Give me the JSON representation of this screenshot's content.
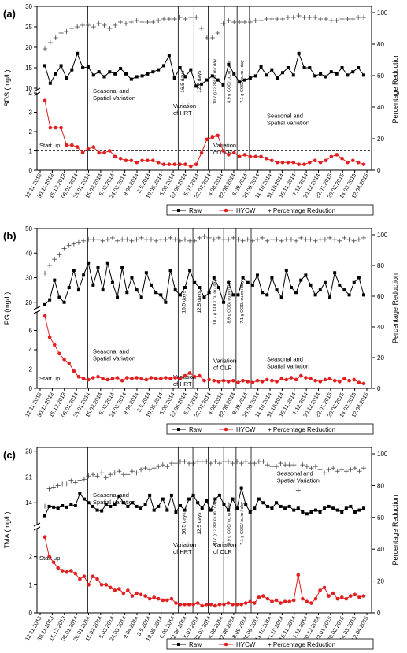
{
  "chart_data": [
    {
      "type": "line",
      "panel_label": "(a)",
      "ylabel_left": "SDS (mg/L)",
      "ylabel_right": "Percentage Reduction",
      "y_upper_ticks": [
        "10",
        "15",
        "20",
        "25",
        "30"
      ],
      "y_upper_range": [
        10,
        30
      ],
      "y_lower_ticks": [
        "0",
        "1",
        "2",
        "3",
        "4"
      ],
      "y_lower_range": [
        0,
        4
      ],
      "y_right_ticks": [
        "0",
        "20",
        "40",
        "60",
        "80",
        "100"
      ],
      "y_right_range": [
        0,
        100
      ],
      "x_ticks": [
        "12.11.2013",
        "30.11.2013",
        "15.12.2013",
        "06.01.2014",
        "26.01.2014",
        "15.02.2014",
        "5.03.2014",
        "24.03.2014",
        "9.04.2014",
        "3.5.2014",
        "19.05.2014",
        "6.06.2014",
        "22.06.2014",
        "5.07.2014",
        "22.07.2014",
        "4.08.2014",
        "22.08.2014",
        "6.09.2014",
        "26.09.2014",
        "11.10.2014",
        "31.10.2014",
        "15.11.2014",
        "7.12.2014",
        "30.12.2014",
        "22.01.2015",
        "20.02.2015",
        "14.03.2015",
        "12.04.2015"
      ],
      "dashed_line_value": 1.0,
      "period_labels": [
        "16.5 days",
        "12.5 days",
        "10.7 g COD/ cu.m / day",
        "8.9 g COD/ cu.m / day",
        "7.1 g COD/ cu.m / day"
      ],
      "annotations": [
        "Start up",
        "Seasonal and\nSpatial Variation",
        "Variation\nof HRT",
        "Variation\nof OLR",
        "Seasonal and\nSpatial Variation"
      ],
      "legend": [
        "Raw",
        "HYCW",
        "+ Percentage Reduction"
      ],
      "series": [
        {
          "name": "Raw",
          "values": [
            15.5,
            11.2,
            13.5,
            15.5,
            12.5,
            14.5,
            18.5,
            15,
            15.2,
            13.2,
            14,
            12.8,
            14,
            13.5,
            14.8,
            13.5,
            12.2,
            12.8,
            13,
            13.5,
            14,
            14.5,
            15.5,
            18,
            12.5,
            15,
            12.8,
            14.5,
            10.5,
            11,
            12,
            13,
            12,
            10.8,
            15.8,
            13.5,
            11.5,
            12,
            12.5,
            13,
            15.2,
            13.2,
            14.5,
            12.5,
            13.8,
            15,
            13.2,
            18.5,
            15,
            15,
            13,
            13.5,
            12.8,
            14,
            13.5,
            15,
            13.2,
            14,
            15,
            13.2
          ]
        },
        {
          "name": "HYCW",
          "values": [
            3.6,
            2.2,
            2.2,
            2.2,
            1.3,
            1.3,
            1.2,
            0.9,
            1.1,
            1.2,
            0.9,
            0.9,
            1.0,
            0.7,
            0.6,
            0.5,
            0.5,
            0.4,
            0.5,
            0.5,
            0.5,
            0.4,
            0.3,
            0.3,
            0.3,
            0.3,
            0.3,
            0.2,
            0.3,
            0.9,
            1.6,
            1.7,
            1.8,
            1.0,
            0.8,
            0.9,
            0.7,
            0.8,
            0.7,
            0.7,
            0.7,
            0.6,
            0.5,
            0.4,
            0.4,
            0.4,
            0.4,
            0.3,
            0.3,
            0.4,
            0.5,
            0.4,
            0.5,
            0.7,
            0.8,
            0.6,
            0.4,
            0.5,
            0.4,
            0.3
          ]
        },
        {
          "name": "Percentage Reduction",
          "values": [
            77,
            81,
            84,
            87,
            88,
            90,
            91,
            92,
            92,
            91,
            93,
            92,
            90,
            92,
            94,
            93,
            94,
            95,
            94,
            94,
            94,
            95,
            96,
            96,
            96,
            97,
            96,
            97,
            97,
            90,
            84,
            84,
            87,
            93,
            95,
            94,
            94,
            94,
            94,
            95,
            95,
            96,
            96,
            96,
            96,
            97,
            97,
            98,
            97,
            97,
            97,
            96,
            96,
            95,
            95,
            96,
            96,
            96,
            97,
            97
          ]
        }
      ]
    },
    {
      "type": "line",
      "panel_label": "(b)",
      "ylabel_left": "PG (mg/L)",
      "ylabel_right": "Percentage Reduction",
      "y_upper_ticks": [
        "20",
        "30",
        "40",
        "50"
      ],
      "y_upper_range": [
        18,
        50
      ],
      "y_lower_ticks": [
        "0",
        "2",
        "4",
        "6"
      ],
      "y_lower_range": [
        0,
        8
      ],
      "y_right_ticks": [
        "0",
        "20",
        "40",
        "60",
        "80",
        "100"
      ],
      "y_right_range": [
        0,
        100
      ],
      "x_ticks": [
        "12.11.2013",
        "30.11.2013",
        "15.12.2013",
        "06.01.2014",
        "26.01.2014",
        "15.02.2014",
        "5.03.2014",
        "24.03.2014",
        "9.04.2014",
        "3.5.2014",
        "19.05.2014",
        "6.06.2014",
        "22.06.2014",
        "5.07.2014",
        "22.07.2014",
        "4.08.2014",
        "22.08.2014",
        "8.09.2014",
        "26.09.2014",
        "11.10.2014",
        "31.10.2014",
        "15.11.2014",
        "7.12.2014",
        "30.12.2014",
        "22.01.2015",
        "20.02.2015",
        "14.03.2015",
        "12.04.2015"
      ],
      "period_labels": [
        "16.5 days",
        "12.5 days",
        "10.7 g COD/ cu.m / day",
        "8.9 g COD/ cu.m / day",
        "7.1 g COD/ cu.m / day"
      ],
      "annotations": [
        "Start up",
        "Seasonal and\nSpatial Variation",
        "Variation\nof HRT",
        "Variation\nof OLR",
        "Seasonal and\nSpatial Variation"
      ],
      "legend": [
        "Raw",
        "HYCW",
        "+ Percentage Reduction"
      ],
      "series": [
        {
          "name": "Raw",
          "values": [
            19,
            21,
            29,
            22,
            20,
            26,
            33,
            25,
            31,
            36,
            27,
            34,
            25,
            36,
            28,
            22,
            34,
            24,
            30,
            25,
            22,
            32,
            27,
            24,
            23,
            20,
            33,
            25,
            23,
            26,
            33,
            28,
            26,
            22,
            24,
            30,
            26,
            20,
            28,
            23,
            23,
            30,
            28,
            27,
            31,
            24,
            23,
            30,
            25,
            22,
            33,
            26,
            24,
            29,
            31,
            27,
            23,
            25,
            28,
            22,
            32,
            27,
            25,
            23,
            28,
            30,
            23
          ]
        },
        {
          "name": "HYCW",
          "values": [
            7.5,
            5.3,
            4.5,
            3.6,
            3.0,
            2.6,
            1.8,
            1.2,
            1.0,
            0.9,
            1.1,
            1.2,
            1.0,
            0.9,
            1.0,
            1.1,
            0.8,
            1.1,
            1.0,
            1.1,
            1.0,
            0.9,
            1.1,
            1.0,
            1.0,
            1.1,
            1.0,
            1.1,
            1.0,
            1.3,
            1.6,
            1.2,
            1.3,
            0.8,
            0.9,
            0.8,
            0.7,
            0.8,
            0.7,
            0.8,
            0.6,
            0.8,
            0.7,
            0.6,
            0.8,
            0.7,
            0.9,
            0.8,
            0.7,
            1.0,
            0.9,
            1.1,
            0.9,
            1.3,
            1.1,
            1.0,
            0.8,
            0.7,
            0.9,
            1.0,
            0.8,
            0.7,
            1.0,
            0.8,
            0.9,
            0.6,
            0.5
          ]
        },
        {
          "name": "Percentage Reduction",
          "values": [
            75,
            80,
            84,
            87,
            91,
            93,
            94,
            95,
            96,
            97,
            97,
            97,
            96,
            97,
            98,
            96,
            97,
            97,
            96,
            97,
            98,
            97,
            97,
            96,
            97,
            97,
            98,
            97,
            96,
            97,
            96,
            96,
            98,
            99,
            98,
            97,
            98,
            97,
            97,
            98,
            97,
            96,
            97,
            96,
            97,
            98,
            96,
            97,
            97,
            96,
            97,
            97,
            96,
            98,
            97,
            97,
            96,
            97,
            97,
            98,
            97,
            96,
            98,
            97,
            96,
            97,
            98
          ]
        }
      ]
    },
    {
      "type": "line",
      "panel_label": "(c)",
      "ylabel_left": "TMA (mg/L)",
      "ylabel_right": "Percentage Reduction",
      "y_upper_ticks": [
        "14",
        "21",
        "28"
      ],
      "y_upper_range": [
        8.5,
        29
      ],
      "y_lower_ticks": [
        "0",
        "1",
        "2"
      ],
      "y_lower_range": [
        0,
        3
      ],
      "y_right_ticks": [
        "0",
        "20",
        "40",
        "60",
        "80",
        "100"
      ],
      "y_right_range": [
        0,
        100
      ],
      "x_ticks": [
        "12.11.2013",
        "30.11.2013",
        "15.12.2013",
        "06.01.2014",
        "26.01.2014",
        "15.02.2014",
        "5.03.2014",
        "24.03.2014",
        "9.04.2014",
        "3.5.2014",
        "19.05.2014",
        "6.06.2014",
        "22.06.2014",
        "5.07.2014",
        "22.07.2014",
        "4.08.2014",
        "22.08.2014",
        "8.09.2014",
        "26.09.2014",
        "11.10.2014",
        "31.10.2014",
        "15.11.2014",
        "7.12.2014",
        "30.12.2014",
        "22.01.2015",
        "20.02.2015",
        "14.03.2015",
        "12.04.2015"
      ],
      "period_labels": [
        "16.5 days",
        "12.5 days",
        "10.7 g COD/ cu.m / day",
        "8.9 g COD/ cu.m / day",
        "7.1 g COD/ cu.m / day"
      ],
      "annotations": [
        "Start up",
        "Seasonal and\nSpatial Variation",
        "Variation\nof HRT",
        "Variation\nof OLR",
        "Seasonal and\nSpatial Variation"
      ],
      "legend": [
        "Raw",
        "HYCW",
        "+ Percentage Reduction"
      ],
      "series": [
        {
          "name": "Raw",
          "values": [
            10.5,
            13,
            12.8,
            12.5,
            13.2,
            12.8,
            13.5,
            13.2,
            16.5,
            15,
            14,
            13,
            12,
            11.8,
            13.5,
            13,
            13.5,
            15.8,
            14,
            13,
            14,
            13,
            12.5,
            13.5,
            16,
            12,
            13,
            15,
            12,
            16,
            11.5,
            13.2,
            12,
            15,
            16,
            14,
            12.5,
            14.5,
            12,
            15,
            16,
            13.5,
            12,
            15,
            12.5,
            18,
            13.5,
            11.5,
            12.5,
            15,
            14,
            13,
            12.5,
            14,
            13,
            12.5,
            13,
            12,
            12.5,
            11.5,
            11,
            11.5,
            12,
            11.5,
            12.5,
            13,
            12.5,
            12,
            11.5,
            12.5,
            13,
            11.5,
            12,
            12.5
          ]
        },
        {
          "name": "HYCW",
          "values": [
            2.7,
            2.0,
            1.8,
            1.6,
            1.5,
            1.45,
            1.5,
            1.4,
            1.2,
            1.3,
            1.0,
            1.3,
            1.2,
            1.0,
            1.0,
            0.9,
            0.8,
            0.85,
            0.7,
            0.8,
            0.6,
            0.7,
            0.65,
            0.6,
            0.5,
            0.55,
            0.5,
            0.45,
            0.45,
            0.5,
            0.35,
            0.3,
            0.3,
            0.3,
            0.3,
            0.35,
            0.25,
            0.3,
            0.3,
            0.25,
            0.3,
            0.3,
            0.35,
            0.3,
            0.3,
            0.3,
            0.35,
            0.4,
            0.35,
            0.55,
            0.6,
            0.5,
            0.4,
            0.45,
            0.35,
            0.4,
            0.4,
            0.45,
            1.35,
            0.5,
            0.4,
            0.35,
            0.5,
            0.8,
            0.9,
            0.6,
            0.7,
            0.5,
            0.55,
            0.5,
            0.6,
            0.65,
            0.55,
            0.6
          ]
        },
        {
          "name": "Percentage Reduction",
          "values": [
            67,
            78,
            79,
            80,
            81,
            81,
            83,
            82,
            83,
            84,
            86,
            87,
            86,
            88,
            85,
            87,
            88,
            89,
            87,
            87,
            89,
            88,
            90,
            91,
            90,
            91,
            92,
            93,
            92,
            94,
            94,
            95,
            95,
            94,
            94,
            95,
            95,
            95,
            94,
            95,
            94,
            95,
            95,
            94,
            95,
            94,
            95,
            94,
            94,
            95,
            95,
            93,
            92,
            92,
            94,
            93,
            93,
            93,
            77,
            93,
            92,
            91,
            92,
            90,
            88,
            90,
            91,
            89,
            90,
            89,
            90,
            91,
            89,
            91
          ]
        }
      ]
    }
  ]
}
